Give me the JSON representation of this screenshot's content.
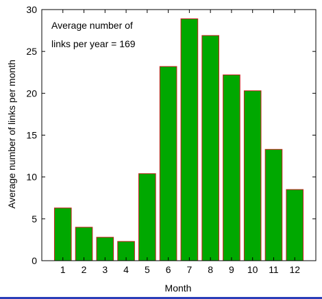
{
  "chart_data": {
    "type": "bar",
    "categories": [
      "1",
      "2",
      "3",
      "4",
      "5",
      "6",
      "7",
      "8",
      "9",
      "10",
      "11",
      "12"
    ],
    "values": [
      6.3,
      4.0,
      2.8,
      2.3,
      10.4,
      23.2,
      28.9,
      26.9,
      22.2,
      20.3,
      13.3,
      8.5
    ],
    "xlabel": "Month",
    "ylabel": "Average number of links per month",
    "ylim": [
      0,
      30
    ],
    "yticks": [
      0,
      5,
      10,
      15,
      20,
      25,
      30
    ],
    "grid": false,
    "annotation": {
      "line1": "Average number of",
      "line2": "links per year = 169"
    },
    "colors": {
      "bar_fill": "#00a800",
      "bar_edge": "#c81e1e",
      "axis": "#000000",
      "bottom_rule": "#2a3db8"
    }
  }
}
